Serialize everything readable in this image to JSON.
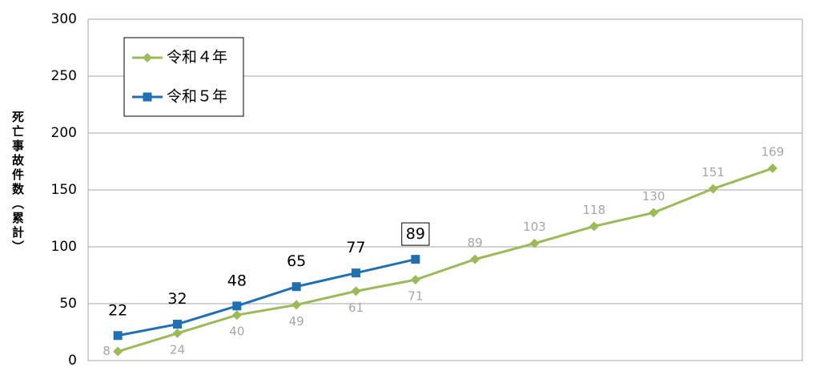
{
  "chart_data": {
    "type": "line",
    "y_label": "死亡事故件数（累計）",
    "categories": [
      null,
      null,
      null,
      null,
      null,
      null,
      null,
      null,
      null,
      null,
      null,
      null
    ],
    "series": [
      {
        "name": "令和４年",
        "color": "#9bbb59",
        "marker": "diamond",
        "values": [
          8,
          24,
          40,
          49,
          61,
          71,
          89,
          103,
          118,
          130,
          151,
          169
        ]
      },
      {
        "name": "令和５年",
        "color": "#1f6fb5",
        "marker": "square",
        "values": [
          22,
          32,
          48,
          65,
          77,
          89,
          null,
          null,
          null,
          null,
          null,
          null
        ]
      }
    ],
    "ylim": [
      0,
      300
    ],
    "yticks": [
      0,
      50,
      100,
      150,
      200,
      250,
      300
    ],
    "grid": true
  }
}
